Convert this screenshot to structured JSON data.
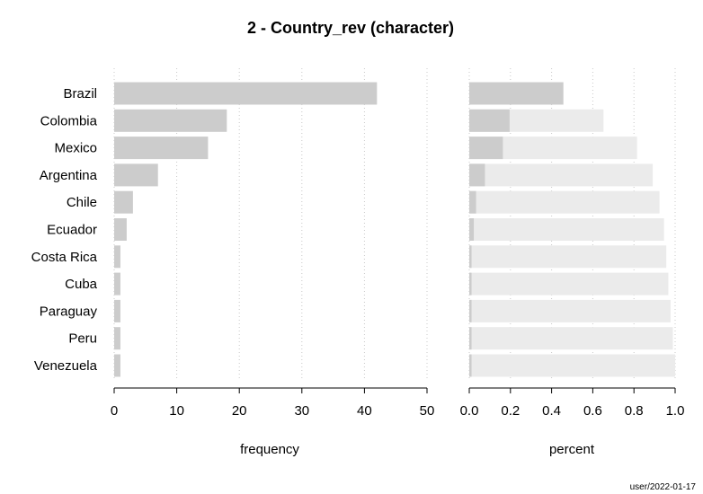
{
  "chart_data": [
    {
      "type": "bar",
      "orientation": "horizontal",
      "title": "2 - Country_rev (character)",
      "xlabel": "frequency",
      "ylabel": "",
      "categories": [
        "Brazil",
        "Colombia",
        "Mexico",
        "Argentina",
        "Chile",
        "Ecuador",
        "Costa Rica",
        "Cuba",
        "Paraguay",
        "Peru",
        "Venezuela"
      ],
      "values": [
        42,
        18,
        15,
        7,
        3,
        2,
        1,
        1,
        1,
        1,
        1
      ],
      "xlim": [
        0,
        50
      ],
      "xticks": [
        "0",
        "10",
        "20",
        "30",
        "40",
        "50"
      ],
      "grid": "vertical dotted",
      "colors": {
        "bar": "#cccccc",
        "grid": "#c8c8c8"
      }
    },
    {
      "type": "bar",
      "orientation": "horizontal",
      "stacked": "cumulative",
      "xlabel": "percent",
      "categories": [
        "Brazil",
        "Colombia",
        "Mexico",
        "Argentina",
        "Chile",
        "Ecuador",
        "Costa Rica",
        "Cuba",
        "Paraguay",
        "Peru",
        "Venezuela"
      ],
      "series": [
        {
          "values": [
            0.457,
            0.196,
            0.163,
            0.076,
            0.033,
            0.022,
            0.011,
            0.011,
            0.011,
            0.011,
            0.011
          ]
        },
        {
          "values": [
            0.457,
            0.652,
            0.815,
            0.891,
            0.924,
            0.946,
            0.957,
            0.967,
            0.978,
            0.989,
            1.0
          ]
        }
      ],
      "xlim": [
        0,
        1
      ],
      "xticks": [
        "0.0",
        "0.2",
        "0.4",
        "0.6",
        "0.8",
        "1.0"
      ],
      "grid": "vertical dotted",
      "colors": {
        "bar": "#cccccc",
        "cumulative": "#ebebeb",
        "grid": "#c8c8c8"
      }
    }
  ],
  "footer": "user/2022-01-17"
}
